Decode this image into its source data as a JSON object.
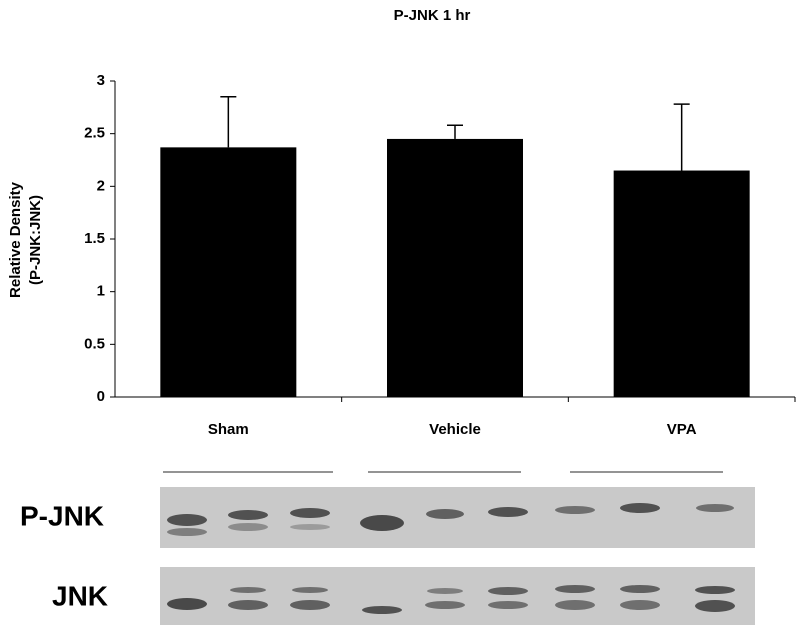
{
  "chart_data": {
    "type": "bar",
    "title": "P-JNK 1 hr",
    "ylabel": [
      "Relative Density",
      "(P-JNK:JNK)"
    ],
    "categories": [
      "Sham",
      "Vehicle",
      "VPA"
    ],
    "values": [
      2.37,
      2.45,
      2.15
    ],
    "errors": [
      0.48,
      0.13,
      0.63
    ],
    "color": "#000000",
    "ylim": [
      0,
      3
    ],
    "yticks": [
      0,
      0.5,
      1,
      1.5,
      2,
      2.5,
      3
    ],
    "blot_labels": [
      "P-JNK",
      "JNK"
    ]
  }
}
